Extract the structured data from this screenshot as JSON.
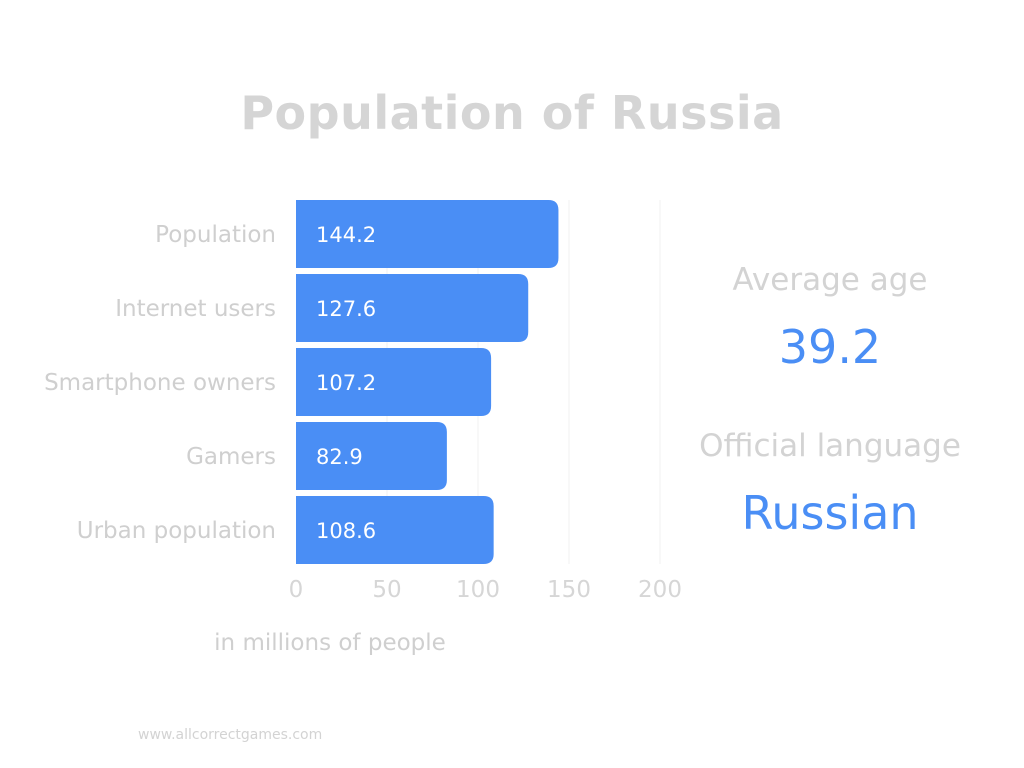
{
  "chart_data": {
    "type": "bar",
    "orientation": "horizontal",
    "title": "Population of Russia",
    "categories": [
      "Population",
      "Internet users",
      "Smartphone owners",
      "Gamers",
      "Urban population"
    ],
    "values": [
      144.2,
      127.6,
      107.2,
      82.9,
      108.6
    ],
    "value_labels": [
      "144.2",
      "127.6",
      "107.2",
      "82.9",
      "108.6"
    ],
    "xlim": [
      0,
      200
    ],
    "x_ticks": [
      0,
      50,
      100,
      150,
      200
    ],
    "x_tick_labels": [
      "0",
      "50",
      "100",
      "150",
      "200"
    ],
    "xlabel": "in millions of people",
    "grid": true,
    "bar_color": "#4a8ef5"
  },
  "stats": {
    "average_age_label": "Average age",
    "average_age_value": "39.2",
    "official_language_label": "Official language",
    "official_language_value": "Russian"
  },
  "footer": {
    "source": "www.allcorrectgames.com"
  },
  "colors": {
    "accent": "#4a8ef5",
    "muted_text": "#d3d3d3"
  }
}
